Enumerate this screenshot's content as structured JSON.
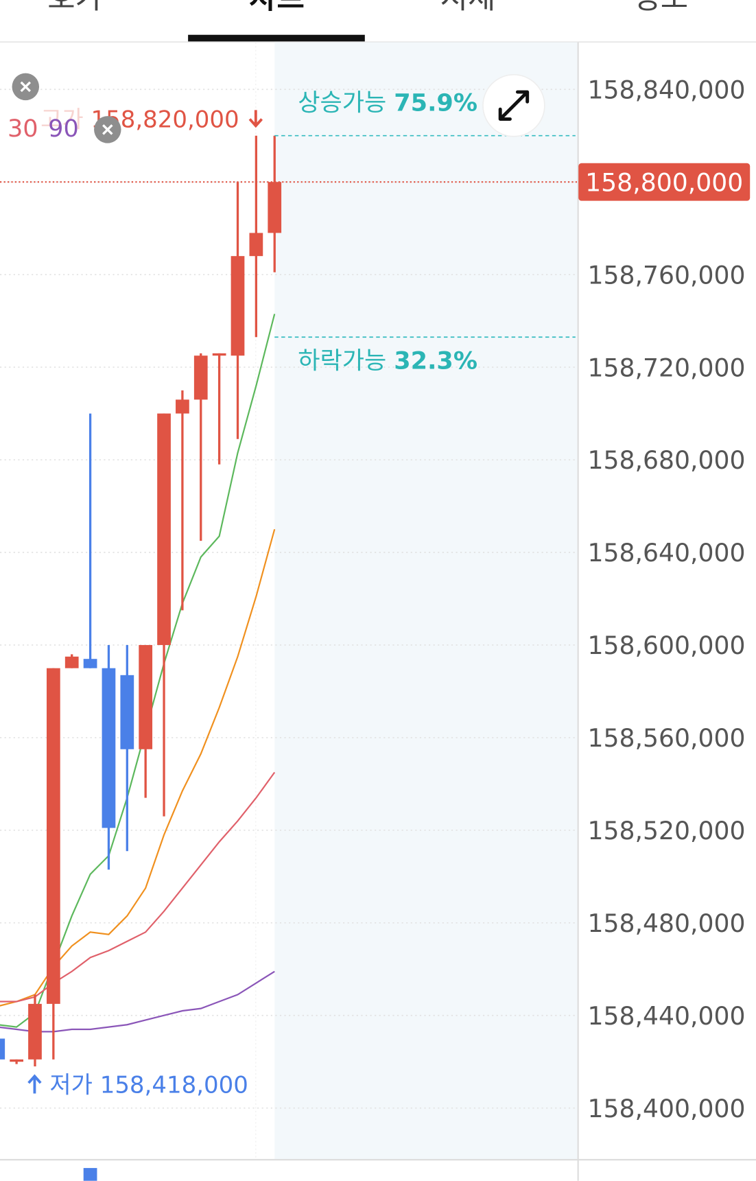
{
  "tabs": [
    "호가",
    "차트",
    "시세",
    "정보"
  ],
  "chart_data": {
    "type": "candlestick",
    "ylim": [
      158378000,
      158860000
    ],
    "yticks": [
      {
        "value": 158400000,
        "label": "158,400,000"
      },
      {
        "value": 158440000,
        "label": "158,440,000"
      },
      {
        "value": 158480000,
        "label": "158,480,000"
      },
      {
        "value": 158520000,
        "label": "158,520,000"
      },
      {
        "value": 158560000,
        "label": "158,560,000"
      },
      {
        "value": 158600000,
        "label": "158,600,000"
      },
      {
        "value": 158640000,
        "label": "158,640,000"
      },
      {
        "value": 158680000,
        "label": "158,680,000"
      },
      {
        "value": 158720000,
        "label": "158,720,000"
      },
      {
        "value": 158760000,
        "label": "158,760,000"
      },
      {
        "value": 158800000,
        "label": "158,800,000"
      },
      {
        "value": 158840000,
        "label": "158,840,000"
      }
    ],
    "grid": true,
    "up_color": "#e05444",
    "down_color": "#4a80e8",
    "candles": {
      "open": [
        158430000,
        158420000,
        158421000,
        158445000,
        158590000,
        158594000,
        158590000,
        158587000,
        158555000,
        158600000,
        158700000,
        158706000,
        158725000,
        158725000,
        158768000,
        158778000
      ],
      "high": [
        158430000,
        158421000,
        158449000,
        158590000,
        158596000,
        158700000,
        158600000,
        158600000,
        158600000,
        158700000,
        158710000,
        158726000,
        158726000,
        158800000,
        158820000,
        158820000
      ],
      "low": [
        158421000,
        158419000,
        158418000,
        158421000,
        158590000,
        158590000,
        158503000,
        158511000,
        158534000,
        158526000,
        158615000,
        158645000,
        158678000,
        158689000,
        158733000,
        158761000
      ],
      "close": [
        158421000,
        158421000,
        158445000,
        158590000,
        158595000,
        158590000,
        158521000,
        158555000,
        158600000,
        158700000,
        158706000,
        158725000,
        158726000,
        158768000,
        158778000,
        158800000
      ]
    },
    "series": [
      {
        "color": "#5cb85c",
        "values": [
          158436000,
          158435000,
          158441000,
          158462000,
          158483000,
          158501000,
          158509000,
          158534000,
          158563000,
          158592000,
          158618000,
          158638000,
          158647000,
          158683000,
          158712000,
          158743000
        ]
      },
      {
        "color": "#f0901e",
        "values": [
          158444000,
          158446000,
          158449000,
          158461000,
          158470000,
          158476000,
          158475000,
          158483000,
          158495000,
          158518000,
          158537000,
          158553000,
          158573000,
          158595000,
          158621000,
          158650000
        ]
      },
      {
        "name": "30",
        "color": "#e0606a",
        "values": [
          158446000,
          158446000,
          158448000,
          158454000,
          158459000,
          158465000,
          158468000,
          158472000,
          158476000,
          158485000,
          158495000,
          158505000,
          158515000,
          158524000,
          158534000,
          158545000
        ]
      },
      {
        "name": "90",
        "color": "#8a55b8",
        "values": [
          158435000,
          158434000,
          158433000,
          158433000,
          158434000,
          158434000,
          158435000,
          158436000,
          158438000,
          158440000,
          158442000,
          158443000,
          158446000,
          158449000,
          158454000,
          158459000
        ]
      }
    ],
    "high_label": {
      "label": "고가 158,820,000",
      "value": 158820000
    },
    "low_label": {
      "label": "저가 158,418,000",
      "value": 158418000
    },
    "current_price": {
      "label": "158,800,000",
      "value": 158800000
    },
    "up_chance": {
      "label": "상승가능",
      "value": 75.9,
      "value_label": "75.9%",
      "level": 158820000
    },
    "down_chance": {
      "label": "하락가능",
      "value": 32.3,
      "value_label": "32.3%",
      "level": 158733000
    }
  }
}
